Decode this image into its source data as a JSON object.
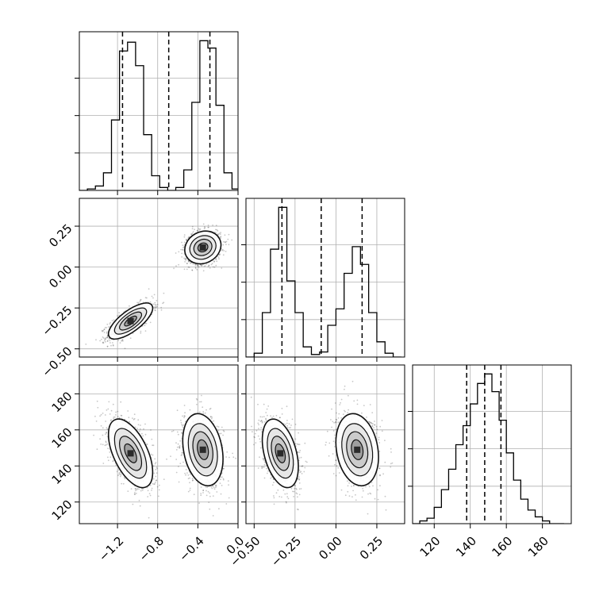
{
  "chart_data": {
    "type": "corner",
    "grid": true,
    "colors": {
      "hist": "#000000",
      "quantile": "#000000",
      "density": "#111111",
      "grid": "#b0b0b0",
      "points": "#000000"
    },
    "parameters": [
      {
        "id": "p0",
        "range": [
          -1.58,
          0.0
        ],
        "ticks": [
          -1.2,
          -0.8,
          -0.4,
          0.0
        ],
        "tick_labels": [
          "−1.2",
          "−0.8",
          "−0.4",
          "0.0"
        ]
      },
      {
        "id": "p1",
        "range": [
          -0.55,
          0.42
        ],
        "ticks": [
          -0.5,
          -0.25,
          0.0,
          0.25
        ],
        "tick_labels": [
          "−0.50",
          "−0.25",
          "0.00",
          "0.25"
        ]
      },
      {
        "id": "p2",
        "range": [
          108,
          196
        ],
        "ticks": [
          120,
          140,
          160,
          180
        ],
        "tick_labels": [
          "120",
          "140",
          "160",
          "180"
        ]
      }
    ],
    "histograms": [
      {
        "param": 0,
        "bin_edges": [
          -1.58,
          -1.5,
          -1.42,
          -1.34,
          -1.26,
          -1.18,
          -1.1,
          -1.02,
          -0.94,
          -0.86,
          -0.78,
          -0.7,
          -0.62,
          -0.54,
          -0.46,
          -0.38,
          -0.3,
          -0.22,
          -0.14,
          -0.06,
          0.02
        ],
        "counts": [
          0,
          1,
          3,
          12,
          48,
          95,
          101,
          85,
          38,
          10,
          2,
          0,
          2,
          14,
          60,
          102,
          97,
          58,
          12,
          1
        ],
        "quantiles": [
          -1.15,
          -0.69,
          -0.28
        ]
      },
      {
        "param": 1,
        "bin_edges": [
          -0.55,
          -0.5,
          -0.45,
          -0.4,
          -0.35,
          -0.3,
          -0.25,
          -0.2,
          -0.15,
          -0.1,
          -0.05,
          0.0,
          0.05,
          0.1,
          0.15,
          0.2,
          0.25,
          0.3,
          0.35,
          0.4
        ],
        "counts": [
          0,
          3,
          35,
          85,
          118,
          60,
          35,
          8,
          2,
          4,
          25,
          38,
          66,
          87,
          73,
          35,
          12,
          3,
          0
        ],
        "quantiles": [
          -0.33,
          -0.09,
          0.16
        ]
      },
      {
        "param": 2,
        "bin_edges": [
          104,
          108,
          112,
          116,
          120,
          124,
          128,
          132,
          136,
          140,
          144,
          148,
          152,
          156,
          160,
          164,
          168,
          172,
          176,
          180,
          184,
          188,
          192
        ],
        "counts": [
          0,
          0,
          2,
          4,
          12,
          25,
          40,
          58,
          72,
          88,
          103,
          110,
          97,
          76,
          52,
          32,
          18,
          10,
          5,
          2,
          0,
          0
        ],
        "quantiles": [
          138,
          148,
          157
        ]
      }
    ],
    "scatter_panels": [
      {
        "x_param": 0,
        "y_param": 1,
        "modes": [
          {
            "center": [
              -1.07,
              -0.33
            ],
            "std": [
              0.11,
              0.055
            ],
            "corr": 0.72,
            "weight": 0.5
          },
          {
            "center": [
              -0.35,
              0.12
            ],
            "std": [
              0.09,
              0.05
            ],
            "corr": 0.15,
            "weight": 0.5
          }
        ]
      },
      {
        "x_param": 0,
        "y_param": 2,
        "modes": [
          {
            "center": [
              -1.07,
              147
            ],
            "std": [
              0.11,
              9.5
            ],
            "corr": -0.55,
            "weight": 0.5
          },
          {
            "center": [
              -0.35,
              149
            ],
            "std": [
              0.1,
              10.0
            ],
            "corr": -0.25,
            "weight": 0.5
          }
        ]
      },
      {
        "x_param": 1,
        "y_param": 2,
        "modes": [
          {
            "center": [
              -0.34,
              147
            ],
            "std": [
              0.055,
              9.5
            ],
            "corr": -0.4,
            "weight": 0.5
          },
          {
            "center": [
              0.13,
              149
            ],
            "std": [
              0.065,
              10.0
            ],
            "corr": -0.2,
            "weight": 0.5
          }
        ]
      }
    ]
  }
}
